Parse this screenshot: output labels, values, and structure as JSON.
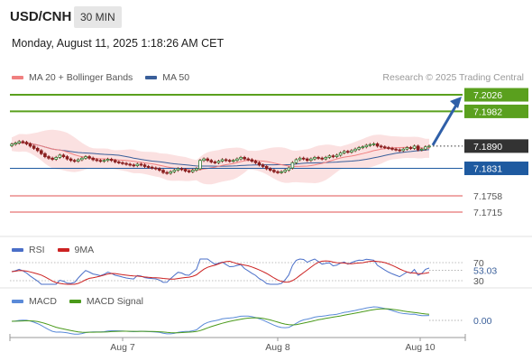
{
  "header": {
    "symbol": "USD/CNH",
    "timeframe": "30 MIN",
    "datetime": "Monday, August 11, 2025 1:18:26 AM CET"
  },
  "main_legend": {
    "ma20_label": "MA 20 + Bollinger Bands",
    "ma20_color": "#f08080",
    "ma50_label": "MA 50",
    "ma50_color": "#3a5f9a"
  },
  "research": "Research © 2025 Trading Central",
  "rsi_legend": {
    "rsi_label": "RSI",
    "rsi_color": "#4a6fc8",
    "ma_label": "9MA",
    "ma_color": "#cc2222"
  },
  "macd_legend": {
    "macd_label": "MACD",
    "macd_color": "#5a8ad8",
    "signal_label": "MACD Signal",
    "signal_color": "#4a9a1a"
  },
  "chart_data": [
    {
      "type": "candlestick",
      "panel": "price",
      "price_levels": [
        {
          "value": 7.2026,
          "label": "7.2026",
          "style": "target",
          "color": "#5aa01e"
        },
        {
          "value": 7.1982,
          "label": "7.1982",
          "style": "resistance",
          "color": "#5aa01e"
        },
        {
          "value": 7.189,
          "label": "7.1890",
          "style": "last",
          "color": "#333333"
        },
        {
          "value": 7.1831,
          "label": "7.1831",
          "style": "pivot",
          "color": "#1e5aa0"
        },
        {
          "value": 7.1758,
          "label": "7.1758",
          "style": "support",
          "color": "#e05050"
        },
        {
          "value": 7.1715,
          "label": "7.1715",
          "style": "support",
          "color": "#e05050"
        }
      ],
      "ylim": [
        7.166,
        7.205
      ],
      "closes": [
        7.1895,
        7.1898,
        7.1902,
        7.19,
        7.1896,
        7.189,
        7.1884,
        7.1878,
        7.187,
        7.1862,
        7.1858,
        7.1855,
        7.186,
        7.1866,
        7.1862,
        7.1856,
        7.1852,
        7.185,
        7.1854,
        7.1858,
        7.1862,
        7.1858,
        7.1854,
        7.1852,
        7.185,
        7.1852,
        7.1855,
        7.1852,
        7.1848,
        7.1846,
        7.1844,
        7.1842,
        7.184,
        7.1838,
        7.1842,
        7.184,
        7.1836,
        7.1834,
        7.1832,
        7.183,
        7.1826,
        7.182,
        7.1818,
        7.1822,
        7.1826,
        7.183,
        7.1828,
        7.1824,
        7.1822,
        7.1826,
        7.183,
        7.1852,
        7.1856,
        7.1852,
        7.1848,
        7.1846,
        7.185,
        7.1854,
        7.1852,
        7.185,
        7.1852,
        7.1856,
        7.186,
        7.1856,
        7.1854,
        7.185,
        7.1846,
        7.184,
        7.1836,
        7.183,
        7.1826,
        7.1822,
        7.182,
        7.1822,
        7.1826,
        7.1832,
        7.1846,
        7.1854,
        7.1858,
        7.1856,
        7.1852,
        7.1856,
        7.186,
        7.1858,
        7.1856,
        7.186,
        7.1864,
        7.1862,
        7.1866,
        7.1872,
        7.1876,
        7.1874,
        7.1878,
        7.1882,
        7.1886,
        7.1888,
        7.1892,
        7.1894,
        7.1896,
        7.189,
        7.1888,
        7.1886,
        7.1884,
        7.1882,
        7.188,
        7.1878,
        7.1882,
        7.1886,
        7.1884,
        7.189,
        7.188,
        7.1882,
        7.1888,
        7.189
      ]
    },
    {
      "type": "line",
      "panel": "rsi",
      "series": [
        {
          "name": "RSI"
        },
        {
          "name": "9MA"
        }
      ],
      "levels": [
        70,
        30
      ],
      "ylim": [
        20,
        80
      ],
      "last_value": "53.03",
      "level_labels": [
        "70",
        "30"
      ]
    },
    {
      "type": "line",
      "panel": "macd",
      "series": [
        {
          "name": "MACD"
        },
        {
          "name": "MACD Signal"
        }
      ],
      "last_value": "0.00",
      "x_ticks": [
        "Aug 7",
        "Aug 8",
        "Aug 10"
      ]
    }
  ]
}
